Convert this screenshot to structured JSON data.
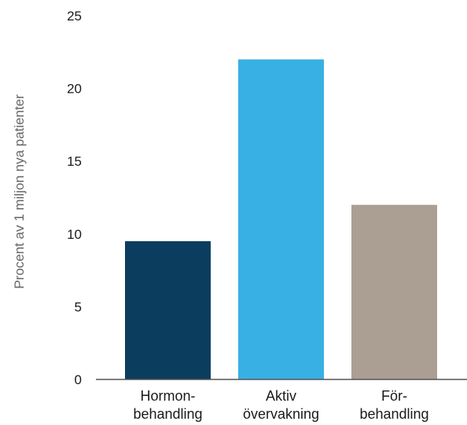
{
  "chart_data": {
    "type": "bar",
    "title": "",
    "xlabel": "",
    "ylabel": "Procent av 1 miljon nya patienter",
    "categories": [
      [
        "Hormon-",
        "behandling"
      ],
      [
        "Aktiv",
        "övervakning"
      ],
      [
        "För-",
        "behandling"
      ]
    ],
    "values": [
      9.5,
      22,
      12
    ],
    "colors": [
      "#0b3d5e",
      "#39b0e3",
      "#ab9e92"
    ],
    "yticks": [
      "0",
      "5",
      "10",
      "15",
      "20",
      "25"
    ],
    "ylim": [
      0,
      25
    ],
    "grid": false,
    "legend": "none"
  }
}
